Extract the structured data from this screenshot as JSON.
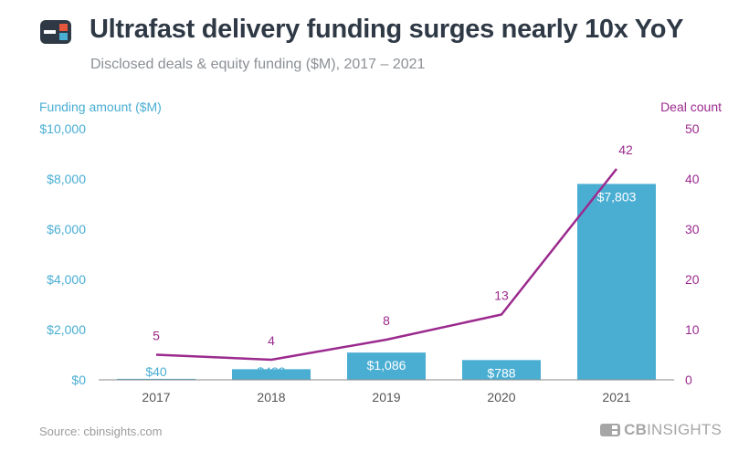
{
  "header": {
    "title": "Ultrafast delivery funding surges nearly 10x YoY",
    "subtitle": "Disclosed deals & equity funding ($M), 2017 – 2021",
    "logo_icon": "cb-insights-logo"
  },
  "footer": {
    "source": "Source: cbinsights.com",
    "brand_bold": "CB",
    "brand_rest": "INSIGHTS"
  },
  "colors": {
    "bar": "#4aaed3",
    "line": "#9b2a8e",
    "title": "#2e3945",
    "bar_label": "#ffffff",
    "axis": "#888888"
  },
  "chart_data": {
    "type": "bar",
    "categories": [
      "2017",
      "2018",
      "2019",
      "2020",
      "2021"
    ],
    "series": [
      {
        "name": "Funding amount ($M)",
        "type": "bar",
        "axis": "left",
        "values": [
          40,
          423,
          1086,
          788,
          7803
        ],
        "labels": [
          "$40",
          "$423",
          "$1,086",
          "$788",
          "$7,803"
        ]
      },
      {
        "name": "Deal count",
        "type": "line",
        "axis": "right",
        "values": [
          5,
          4,
          8,
          13,
          42
        ],
        "labels": [
          "5",
          "4",
          "8",
          "13",
          "42"
        ]
      }
    ],
    "ylabel_left": "Funding amount ($M)",
    "ylabel_right": "Deal count",
    "ylim_left": [
      0,
      10000
    ],
    "ylim_right": [
      0,
      50
    ],
    "yticks_left": [
      "$0",
      "$2,000",
      "$4,000",
      "$6,000",
      "$8,000",
      "$10,000"
    ],
    "yticks_right": [
      "0",
      "10",
      "20",
      "30",
      "40",
      "50"
    ],
    "grid": false,
    "legend": "none"
  }
}
